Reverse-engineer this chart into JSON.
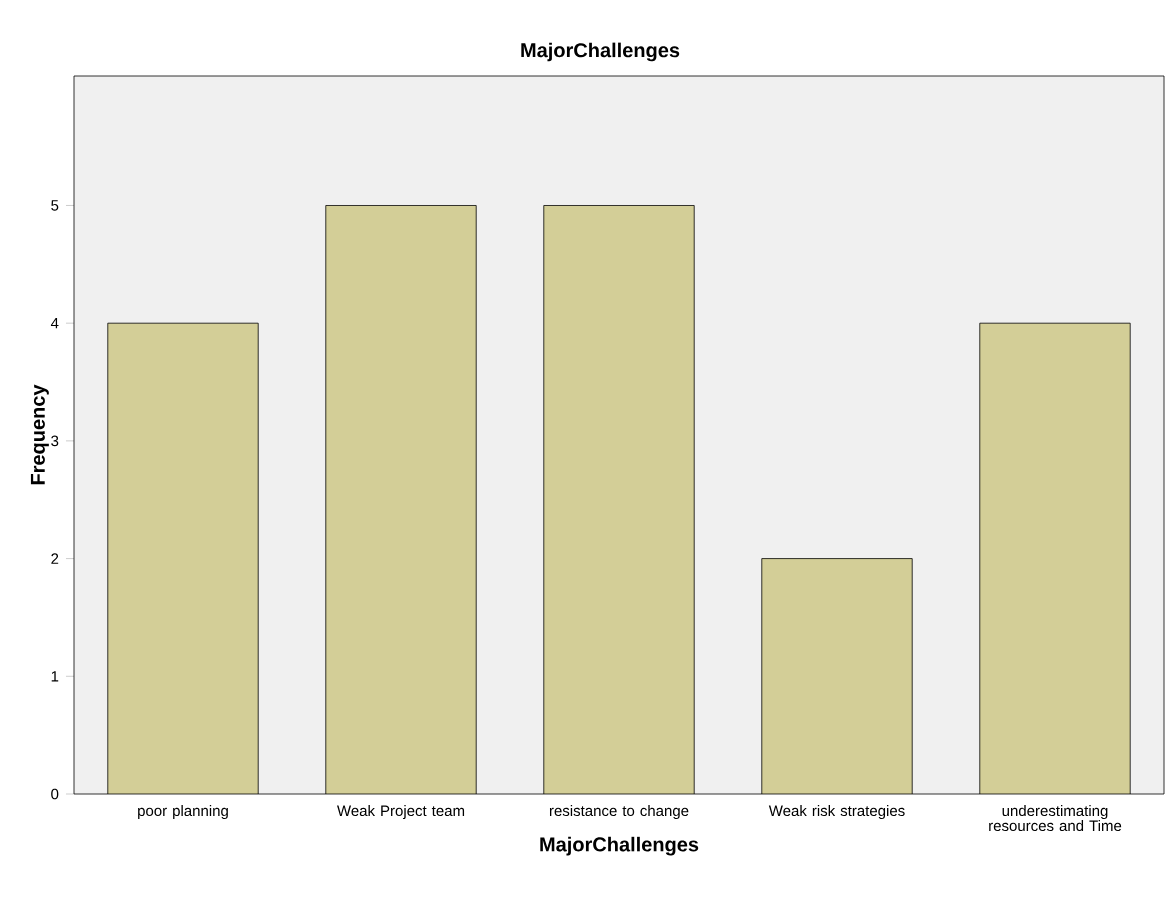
{
  "chart_data": {
    "type": "bar",
    "title": "MajorChallenges",
    "xlabel": "MajorChallenges",
    "ylabel": "Frequency",
    "categories": [
      "poor planning",
      "Weak Project team",
      "resistance to change",
      "Weak risk strategies",
      "underestimating resources and Time"
    ],
    "values": [
      4,
      5,
      5,
      2,
      4
    ],
    "color": "#d3ce97",
    "ylim": [
      0,
      6.1
    ],
    "yticks": [
      0,
      1,
      2,
      3,
      4,
      5
    ]
  }
}
